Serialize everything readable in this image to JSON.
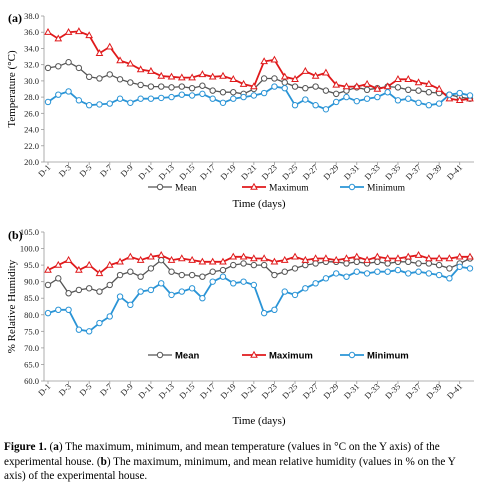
{
  "colors": {
    "mean": "#555555",
    "maximum": "#e0191b",
    "minimum": "#2a94d6"
  },
  "caption": {
    "fig": "Figure 1.",
    "p1": " (",
    "a": "a",
    "p2": ") The maximum, minimum, and mean temperature (values in °C on the Y axis) of the experimental house. (",
    "b": "b",
    "p3": ") The maximum, minimum, and mean relative humidity (values in % on the Y axis) of the experimental house."
  },
  "chart_data": [
    {
      "panel_label": "(a)",
      "type": "line",
      "xlabel": "Time (days)",
      "ylabel": "Temperature (°C)",
      "ylim": [
        20.0,
        38.0
      ],
      "yticks": [
        "20.0",
        "22.0",
        "24.0",
        "26.0",
        "28.0",
        "30.0",
        "32.0",
        "34.0",
        "36.0",
        "38.0"
      ],
      "x_tick_labels": [
        "D-1",
        "D-3",
        "D-5",
        "D-7",
        "D-9",
        "D-11",
        "D-13",
        "D-15",
        "D-17",
        "D-19",
        "D-21",
        "D-23",
        "D-25",
        "D-27",
        "D-29",
        "D-31",
        "D-33",
        "D-35",
        "D-37",
        "D-39",
        "D-41"
      ],
      "legend": "bottom-center",
      "series": [
        {
          "name": "Mean",
          "values": [
            31.6,
            31.8,
            32.3,
            31.6,
            30.5,
            30.3,
            30.8,
            30.2,
            29.8,
            29.5,
            29.3,
            29.3,
            29.2,
            29.3,
            29.1,
            29.4,
            28.8,
            28.6,
            28.6,
            28.4,
            29.0,
            30.3,
            30.3,
            29.8,
            29.3,
            29.1,
            29.3,
            28.8,
            28.4,
            28.8,
            29.2,
            28.9,
            29.1,
            29.3,
            29.2,
            28.9,
            28.8,
            28.6,
            28.5,
            28.3,
            28.0,
            27.8
          ]
        },
        {
          "name": "Maximum",
          "values": [
            36.0,
            35.2,
            36.0,
            36.1,
            35.6,
            33.4,
            34.2,
            32.5,
            32.1,
            31.4,
            31.2,
            30.6,
            30.5,
            30.4,
            30.4,
            30.8,
            30.5,
            30.6,
            30.2,
            29.6,
            29.3,
            32.4,
            32.6,
            30.5,
            30.2,
            31.2,
            30.6,
            31.0,
            29.5,
            29.3,
            29.3,
            29.6,
            29.0,
            29.3,
            30.2,
            30.2,
            29.8,
            29.6,
            29.0,
            27.8,
            27.6,
            27.8
          ]
        },
        {
          "name": "Minimum",
          "values": [
            27.4,
            28.3,
            28.7,
            27.6,
            27.0,
            27.1,
            27.2,
            27.8,
            27.3,
            27.8,
            27.8,
            27.9,
            28.0,
            28.3,
            28.2,
            28.4,
            27.8,
            27.3,
            27.8,
            28.0,
            28.2,
            28.5,
            29.3,
            29.1,
            27.0,
            27.7,
            27.0,
            26.5,
            27.4,
            28.0,
            27.5,
            27.8,
            28.0,
            28.6,
            27.6,
            27.8,
            27.3,
            27.0,
            27.2,
            28.3,
            28.5,
            28.2
          ]
        }
      ]
    },
    {
      "panel_label": "(b)",
      "type": "line",
      "xlabel": "Time (days)",
      "ylabel": "% Relative Humidity",
      "ylim": [
        60.0,
        105.0
      ],
      "yticks": [
        "60.0",
        "65.0",
        "70.0",
        "75.0",
        "80.0",
        "85.0",
        "90.0",
        "95.0",
        "100.0",
        "105.0"
      ],
      "x_tick_labels": [
        "D-1",
        "D-3",
        "D-5",
        "D-7",
        "D-9",
        "D-11",
        "D-13",
        "D-15",
        "D-17",
        "D-19",
        "D-21",
        "D-23",
        "D-25",
        "D-27",
        "D-29",
        "D-31",
        "D-33",
        "D-35",
        "D-37",
        "D-39",
        "D-41"
      ],
      "legend": "bottom-center",
      "series": [
        {
          "name": "Mean",
          "values": [
            89.0,
            91.0,
            86.5,
            87.5,
            88.0,
            87.0,
            89.0,
            92.0,
            93.0,
            91.5,
            94.0,
            96.5,
            93.0,
            92.0,
            92.0,
            91.5,
            93.0,
            93.5,
            95.0,
            95.5,
            95.0,
            95.0,
            92.0,
            93.0,
            94.0,
            95.0,
            95.5,
            96.0,
            96.0,
            95.5,
            96.0,
            95.5,
            96.0,
            95.5,
            96.0,
            96.0,
            95.5,
            95.5,
            95.0,
            94.0,
            95.5,
            97.0
          ]
        },
        {
          "name": "Maximum",
          "values": [
            93.5,
            95.0,
            96.5,
            93.5,
            95.0,
            92.5,
            95.0,
            96.0,
            97.5,
            96.5,
            97.5,
            98.0,
            96.5,
            97.0,
            96.5,
            96.0,
            96.0,
            96.0,
            97.5,
            97.5,
            97.0,
            97.0,
            96.0,
            96.5,
            97.5,
            96.5,
            97.0,
            97.0,
            96.5,
            97.0,
            97.5,
            96.5,
            97.5,
            97.0,
            97.0,
            97.5,
            98.0,
            97.0,
            97.0,
            97.0,
            97.5,
            97.5
          ]
        },
        {
          "name": "Minimum",
          "values": [
            80.5,
            81.5,
            81.5,
            75.5,
            75.0,
            77.5,
            79.5,
            85.5,
            83.0,
            87.0,
            87.5,
            89.5,
            86.0,
            87.0,
            88.0,
            85.0,
            90.0,
            91.5,
            89.5,
            90.0,
            89.0,
            80.5,
            81.5,
            87.0,
            86.0,
            88.0,
            89.5,
            91.0,
            92.5,
            91.5,
            93.0,
            92.5,
            93.0,
            93.0,
            93.5,
            92.5,
            93.0,
            92.5,
            92.0,
            91.0,
            94.5,
            94.0
          ]
        }
      ]
    }
  ]
}
